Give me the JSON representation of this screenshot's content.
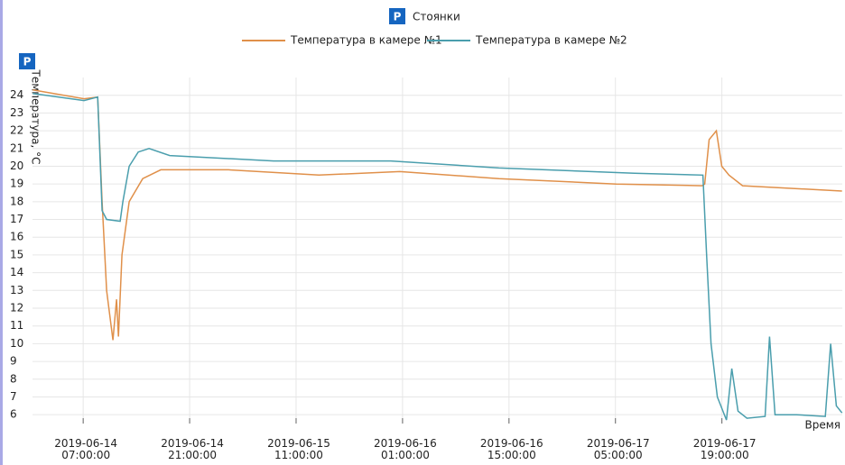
{
  "chart_data": {
    "type": "line",
    "top_legend": "Стоянки",
    "y_label": "Температура, °C",
    "x_label": "Время",
    "xlim": [
      "2019-06-14 00:20:00",
      "2019-06-18 10:50:00"
    ],
    "xticks": [
      "2019-06-14 07:00:00",
      "2019-06-14 21:00:00",
      "2019-06-15 11:00:00",
      "2019-06-16 01:00:00",
      "2019-06-16 15:00:00",
      "2019-06-17 05:00:00",
      "2019-06-17 19:00:00"
    ],
    "ylim": [
      5.5,
      25
    ],
    "yticks": [
      6,
      7,
      8,
      9,
      10,
      11,
      12,
      13,
      14,
      15,
      16,
      17,
      18,
      19,
      20,
      21,
      22,
      23,
      24
    ],
    "grid": true,
    "series": [
      {
        "name": "Температура в камере №1",
        "color": "#e0904a",
        "x": [
          "2019-06-14 00:22:00",
          "2019-06-14 07:07:00",
          "2019-06-14 08:54:00",
          "2019-06-14 09:29:00",
          "2019-06-14 10:05:00",
          "2019-06-14 10:55:00",
          "2019-06-14 11:23:00",
          "2019-06-14 11:38:00",
          "2019-06-14 12:06:00",
          "2019-06-14 13:03:00",
          "2019-06-14 14:50:00",
          "2019-06-14 17:12:00",
          "2019-06-15 02:06:00",
          "2019-06-15 14:00:00",
          "2019-06-16 00:38:00",
          "2019-06-16 13:41:00",
          "2019-06-17 05:06:00",
          "2019-06-17 16:24:00",
          "2019-06-17 16:44:00",
          "2019-06-17 17:19:00",
          "2019-06-17 18:16:00",
          "2019-06-17 18:59:00",
          "2019-06-17 19:56:00",
          "2019-06-17 21:43:00",
          "2019-06-18 10:48:00"
        ],
        "values": [
          24.3,
          23.8,
          23.9,
          18,
          13,
          10.2,
          12.5,
          10.4,
          15,
          18,
          19.3,
          19.8,
          19.8,
          19.5,
          19.7,
          19.3,
          19.0,
          18.9,
          19,
          21.5,
          22,
          20,
          19.5,
          18.9,
          18.6
        ]
      },
      {
        "name": "Температура в камере №2",
        "color": "#4a9ead",
        "x": [
          "2019-06-14 00:22:00",
          "2019-06-14 07:07:00",
          "2019-06-14 08:54:00",
          "2019-06-14 09:29:00",
          "2019-06-14 10:05:00",
          "2019-06-14 11:52:00",
          "2019-06-14 12:13:00",
          "2019-06-14 13:03:00",
          "2019-06-14 14:14:00",
          "2019-06-14 15:40:00",
          "2019-06-14 18:23:00",
          "2019-06-15 08:02:00",
          "2019-06-15 23:27:00",
          "2019-06-16 13:41:00",
          "2019-06-17 07:30:00",
          "2019-06-17 16:30:00",
          "2019-06-17 16:59:00",
          "2019-06-17 17:34:00",
          "2019-06-17 18:24:00",
          "2019-06-17 19:36:00",
          "2019-06-17 20:18:00",
          "2019-06-17 21:07:00",
          "2019-06-17 22:18:00",
          "2019-06-18 00:41:00",
          "2019-06-18 01:16:00",
          "2019-06-18 01:59:00",
          "2019-06-18 04:50:00",
          "2019-06-18 08:36:00",
          "2019-06-18 09:18:00",
          "2019-06-18 10:03:00",
          "2019-06-18 10:48:00"
        ],
        "values": [
          24.1,
          23.7,
          23.9,
          17.5,
          17,
          16.9,
          18,
          20,
          20.8,
          21,
          20.6,
          20.3,
          20.3,
          19.9,
          19.6,
          19.5,
          15,
          10,
          7,
          5.7,
          8.6,
          6.2,
          5.8,
          5.9,
          10.4,
          6,
          6,
          5.9,
          10,
          6.5,
          6.1
        ]
      }
    ]
  }
}
